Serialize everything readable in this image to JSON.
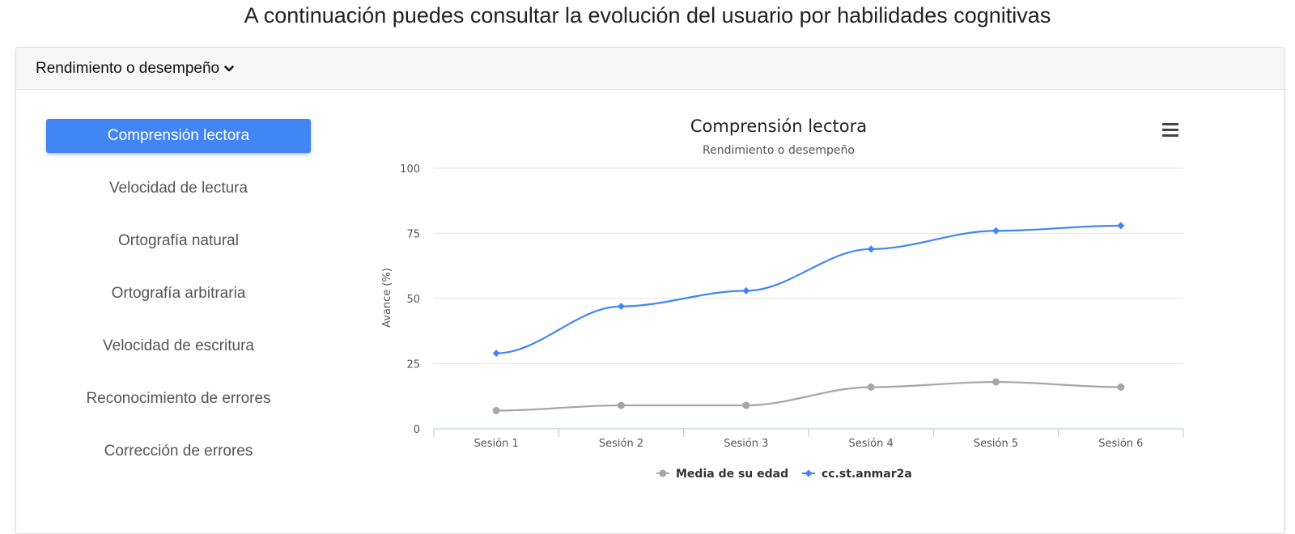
{
  "heading": "A continuación puedes consultar la evolución del usuario por habilidades cognitivas",
  "dropdown": {
    "label": "Rendimiento o desempeño",
    "icon": "chevron-down-icon"
  },
  "menu": {
    "items": [
      {
        "label": "Comprensión lectora",
        "active": true
      },
      {
        "label": "Velocidad de lectura",
        "active": false
      },
      {
        "label": "Ortografía natural",
        "active": false
      },
      {
        "label": "Ortografía arbitraria",
        "active": false
      },
      {
        "label": "Velocidad de escritura",
        "active": false
      },
      {
        "label": "Reconocimiento de errores",
        "active": false
      },
      {
        "label": "Corrección de errores",
        "active": false
      }
    ]
  },
  "chart_menu_icon": "hamburger-menu-icon",
  "colors": {
    "accent": "#4285f4",
    "series_user": "#4285f4",
    "series_avg": "#a6a6a6"
  },
  "chart_data": {
    "type": "line",
    "title": "Comprensión lectora",
    "subtitle": "Rendimiento o desempeño",
    "xlabel": "",
    "ylabel": "Avance (%)",
    "categories": [
      "Sesión 1",
      "Sesión 2",
      "Sesión 3",
      "Sesión 4",
      "Sesión 5",
      "Sesión 6"
    ],
    "ylim": [
      0,
      100
    ],
    "yticks": [
      0,
      25,
      50,
      75,
      100
    ],
    "grid": true,
    "legend_position": "bottom-center",
    "series": [
      {
        "name": "Media de su edad",
        "marker": "circle",
        "color": "#a6a6a6",
        "values": [
          7,
          9,
          9,
          16,
          18,
          16
        ]
      },
      {
        "name": "cc.st.anmar2a",
        "marker": "diamond",
        "color": "#4285f4",
        "values": [
          29,
          47,
          53,
          69,
          76,
          78
        ]
      }
    ]
  }
}
